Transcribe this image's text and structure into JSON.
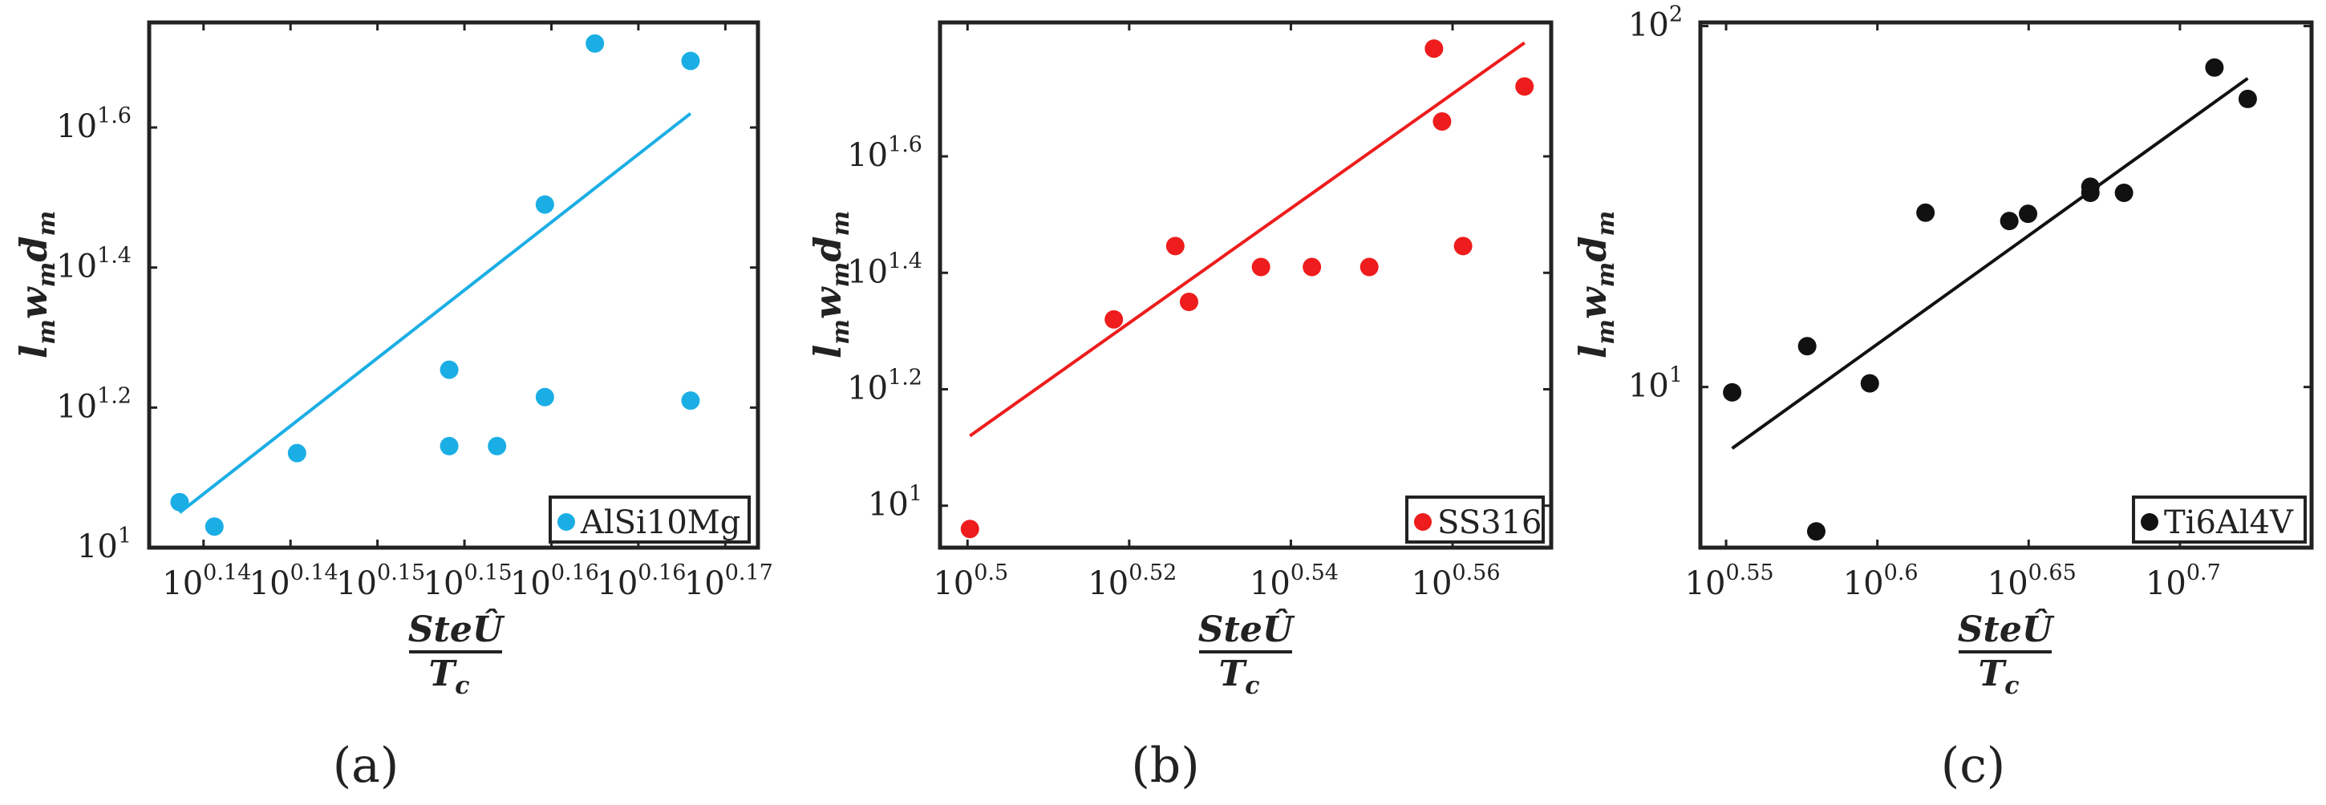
{
  "panels": [
    {
      "panel_label": "(a)",
      "ylabel": "l_m w_m d_m",
      "xlabel_numerator": "SteÛ",
      "xlabel_denominator": "T_c",
      "chart_data": {
        "type": "scatter",
        "title": "",
        "legend": "AlSi10Mg",
        "legend_position": "bottom-right",
        "color": "#1aaee5",
        "xscale": "log",
        "yscale": "log",
        "xlim_exp": [
          0.1375,
          0.1655
        ],
        "ylim_exp": [
          1.0,
          1.75
        ],
        "xticks": [
          {
            "exp": 0.14,
            "label": "0.14"
          },
          {
            "exp": 0.144,
            "label": "0.14"
          },
          {
            "exp": 0.148,
            "label": "0.15"
          },
          {
            "exp": 0.152,
            "label": "0.15"
          },
          {
            "exp": 0.156,
            "label": "0.16"
          },
          {
            "exp": 0.16,
            "label": "0.16"
          },
          {
            "exp": 0.164,
            "label": "0.17"
          }
        ],
        "yticks": [
          {
            "exp": 1.0,
            "label": "1"
          },
          {
            "exp": 1.2,
            "label": "1.2"
          },
          {
            "exp": 1.4,
            "label": "1.4"
          },
          {
            "exp": 1.6,
            "label": "1.6"
          }
        ],
        "points": [
          {
            "x": 0.1389,
            "y": 1.065
          },
          {
            "x": 0.1405,
            "y": 1.03
          },
          {
            "x": 0.1443,
            "y": 1.135
          },
          {
            "x": 0.1513,
            "y": 1.254
          },
          {
            "x": 0.1513,
            "y": 1.145
          },
          {
            "x": 0.1535,
            "y": 1.145
          },
          {
            "x": 0.1557,
            "y": 1.49
          },
          {
            "x": 0.1557,
            "y": 1.215
          },
          {
            "x": 0.158,
            "y": 1.72
          },
          {
            "x": 0.1624,
            "y": 1.21
          },
          {
            "x": 0.1624,
            "y": 1.695
          }
        ],
        "fit_line": [
          {
            "x": 0.1389,
            "y": 1.05
          },
          {
            "x": 0.1624,
            "y": 1.62
          }
        ]
      }
    },
    {
      "panel_label": "(b)",
      "ylabel": "l_m w_m d_m",
      "xlabel_numerator": "SteÛ",
      "xlabel_denominator": "T_c",
      "chart_data": {
        "type": "scatter",
        "title": "",
        "legend": "SS316",
        "legend_position": "bottom-right",
        "color": "#ee1c1c",
        "xscale": "log",
        "yscale": "log",
        "xlim_exp": [
          0.4966,
          0.5722
        ],
        "ylim_exp": [
          0.928,
          1.83
        ],
        "xticks": [
          {
            "exp": 0.5,
            "label": "0.5"
          },
          {
            "exp": 0.52,
            "label": "0.52"
          },
          {
            "exp": 0.54,
            "label": "0.54"
          },
          {
            "exp": 0.56,
            "label": "0.56"
          }
        ],
        "yticks": [
          {
            "exp": 1.0,
            "label": "1"
          },
          {
            "exp": 1.2,
            "label": "1.2"
          },
          {
            "exp": 1.4,
            "label": "1.4"
          },
          {
            "exp": 1.6,
            "label": "1.6"
          }
        ],
        "points": [
          {
            "x": 0.5003,
            "y": 0.96
          },
          {
            "x": 0.5181,
            "y": 1.32
          },
          {
            "x": 0.5257,
            "y": 1.446
          },
          {
            "x": 0.5274,
            "y": 1.35
          },
          {
            "x": 0.5363,
            "y": 1.41
          },
          {
            "x": 0.5426,
            "y": 1.41
          },
          {
            "x": 0.5497,
            "y": 1.41
          },
          {
            "x": 0.5577,
            "y": 1.785
          },
          {
            "x": 0.5587,
            "y": 1.66
          },
          {
            "x": 0.5613,
            "y": 1.446
          },
          {
            "x": 0.5689,
            "y": 1.72
          }
        ],
        "fit_line": [
          {
            "x": 0.5003,
            "y": 1.12
          },
          {
            "x": 0.5689,
            "y": 1.795
          }
        ]
      }
    },
    {
      "panel_label": "(c)",
      "ylabel": "l_m w_m d_m",
      "xlabel_numerator": "SteÛ",
      "xlabel_denominator": "T_c",
      "chart_data": {
        "type": "scatter",
        "title": "",
        "legend": "Ti6Al4V",
        "legend_position": "bottom-right",
        "color": "#111111",
        "xscale": "log",
        "yscale": "log",
        "xlim_exp": [
          0.5415,
          0.7435
        ],
        "ylim_exp": [
          0.555,
          2.01
        ],
        "xticks": [
          {
            "exp": 0.55,
            "label": "0.55"
          },
          {
            "exp": 0.6,
            "label": "0.6"
          },
          {
            "exp": 0.65,
            "label": "0.65"
          },
          {
            "exp": 0.7,
            "label": "0.7"
          }
        ],
        "yticks": [
          {
            "exp": 1.0,
            "label": "1"
          },
          {
            "exp": 2.0,
            "label": "2"
          }
        ],
        "points": [
          {
            "x": 0.552,
            "y": 0.985
          },
          {
            "x": 0.5768,
            "y": 1.113
          },
          {
            "x": 0.5798,
            "y": 0.6
          },
          {
            "x": 0.5975,
            "y": 1.01
          },
          {
            "x": 0.6159,
            "y": 1.483
          },
          {
            "x": 0.6436,
            "y": 1.46
          },
          {
            "x": 0.6498,
            "y": 1.48
          },
          {
            "x": 0.6704,
            "y": 1.538
          },
          {
            "x": 0.6704,
            "y": 1.555
          },
          {
            "x": 0.6815,
            "y": 1.538
          },
          {
            "x": 0.7114,
            "y": 1.885
          },
          {
            "x": 0.7224,
            "y": 1.798
          }
        ],
        "fit_line": [
          {
            "x": 0.552,
            "y": 0.83
          },
          {
            "x": 0.7224,
            "y": 1.855
          }
        ]
      }
    }
  ]
}
